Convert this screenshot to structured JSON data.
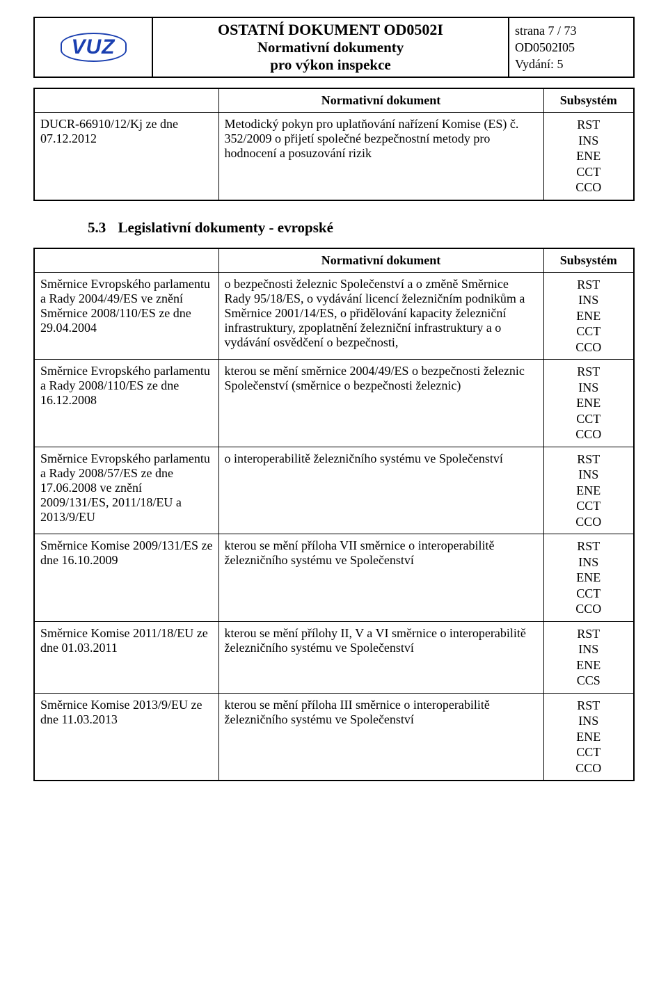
{
  "header": {
    "logo_text": "VUZ",
    "title_line1": "OSTATNÍ DOKUMENT  OD0502I",
    "title_line2": "Normativní dokumenty",
    "title_line3": "pro výkon inspekce",
    "page_label": "strana 7 / 73",
    "doc_code": "OD0502I05",
    "edition_label": "Vydání: 5"
  },
  "table1": {
    "header_nd": "Normativní dokument",
    "header_sub": "Subsystém",
    "row": {
      "left": "DUCR-66910/12/Kj ze dne 07.12.2012",
      "mid": "Metodický pokyn pro uplatňování nařízení Komise (ES) č. 352/2009 o přijetí společné bezpečnostní metody pro hodnocení a posuzování rizik",
      "right_lines": [
        "RST",
        "INS",
        "ENE",
        "CCT",
        "CCO"
      ]
    }
  },
  "section": {
    "number": "5.3",
    "title": "Legislativní dokumenty - evropské"
  },
  "table2": {
    "header_nd": "Normativní dokument",
    "header_sub": "Subsystém",
    "rows": [
      {
        "left": "Směrnice Evropského parlamentu a Rady 2004/49/ES ve znění Směrnice 2008/110/ES ze dne 29.04.2004",
        "mid": "o bezpečnosti železnic Společenství a o změně Směrnice Rady 95/18/ES, o vydávání licencí železničním podnikům a Směrnice 2001/14/ES, o přidělování kapacity železniční infrastruktury, zpoplatnění železniční infrastruktury a o vydávání osvědčení o bezpečnosti,",
        "right_lines": [
          "RST",
          "INS",
          "ENE",
          "CCT",
          "CCO"
        ]
      },
      {
        "left": "Směrnice Evropského parlamentu a Rady 2008/110/ES ze dne 16.12.2008",
        "mid": "kterou se mění směrnice 2004/49/ES o bezpečnosti železnic Společenství (směrnice o bezpečnosti železnic)",
        "right_lines": [
          "RST",
          "INS",
          "ENE",
          "CCT",
          "CCO"
        ]
      },
      {
        "left": "Směrnice Evropského parlamentu a Rady 2008/57/ES ze dne 17.06.2008 ve znění 2009/131/ES, 2011/18/EU a 2013/9/EU",
        "mid": "o interoperabilitě železničního systému ve Společenství",
        "right_lines": [
          "RST",
          "INS",
          "ENE",
          "CCT",
          "CCO"
        ]
      },
      {
        "left": "Směrnice Komise 2009/131/ES ze dne 16.10.2009",
        "mid": "kterou se mění příloha VII směrnice o interoperabilitě železničního systému ve Společenství",
        "right_lines": [
          "RST",
          "INS",
          "ENE",
          "CCT",
          "CCO"
        ]
      },
      {
        "left": "Směrnice Komise 2011/18/EU ze dne 01.03.2011",
        "mid": "kterou se mění přílohy II, V a VI směrnice o interoperabilitě železničního systému ve Společenství",
        "right_lines": [
          "RST",
          "INS",
          "ENE",
          "CCS"
        ]
      },
      {
        "left": "Směrnice Komise 2013/9/EU ze dne 11.03.2013",
        "mid": "kterou se mění příloha III směrnice o interoperabilitě železničního systému ve Společenství",
        "right_lines": [
          "RST",
          "INS",
          "ENE",
          "CCT",
          "CCO"
        ]
      }
    ]
  }
}
